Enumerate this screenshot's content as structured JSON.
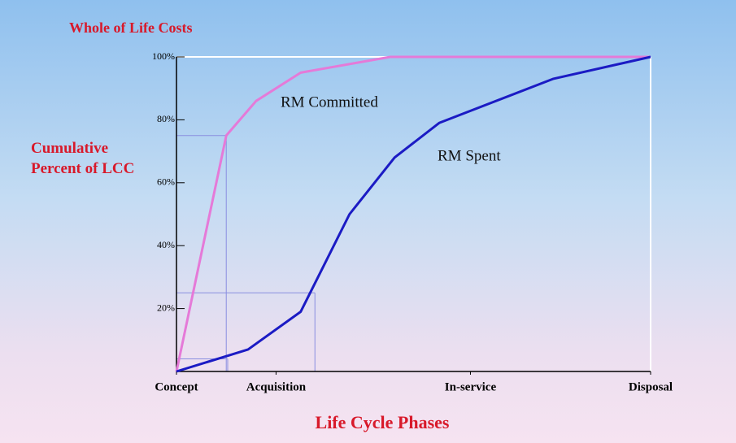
{
  "chart_data": {
    "type": "line",
    "title": "Whole of Life Costs",
    "ylabel": "Cumulative Percent of LCC",
    "xlabel": "Life Cycle Phases",
    "xlim": [
      0,
      100
    ],
    "xticks": [
      {
        "value": 0,
        "label": "Concept"
      },
      {
        "value": 21,
        "label": "Acquisition"
      },
      {
        "value": 62,
        "label": "In-service"
      },
      {
        "value": 100,
        "label": "Disposal"
      }
    ],
    "ylim": [
      0,
      100
    ],
    "yticks": [
      {
        "value": 20,
        "label": "20%"
      },
      {
        "value": 40,
        "label": "40%"
      },
      {
        "value": 60,
        "label": "60%"
      },
      {
        "value": 80,
        "label": "80%"
      },
      {
        "value": 100,
        "label": "100%"
      }
    ],
    "series": [
      {
        "name": "RM Committed",
        "color": "#e57ad8",
        "x": [
          0,
          10.5,
          16.8,
          26.2,
          45.1,
          100
        ],
        "values": [
          0,
          75,
          86,
          95,
          100,
          100
        ]
      },
      {
        "name": "RM Spent",
        "color": "#1b1bc4",
        "x": [
          0,
          10.8,
          15.1,
          26.2,
          36.5,
          46,
          55.4,
          79.4,
          100
        ],
        "values": [
          0,
          5,
          7,
          19,
          50,
          68,
          79,
          93,
          100
        ]
      }
    ],
    "guides": [
      {
        "x": 10.5,
        "y": 75
      },
      {
        "x": 29.2,
        "y": 25
      },
      {
        "x": 10.8,
        "y": 4
      }
    ]
  }
}
